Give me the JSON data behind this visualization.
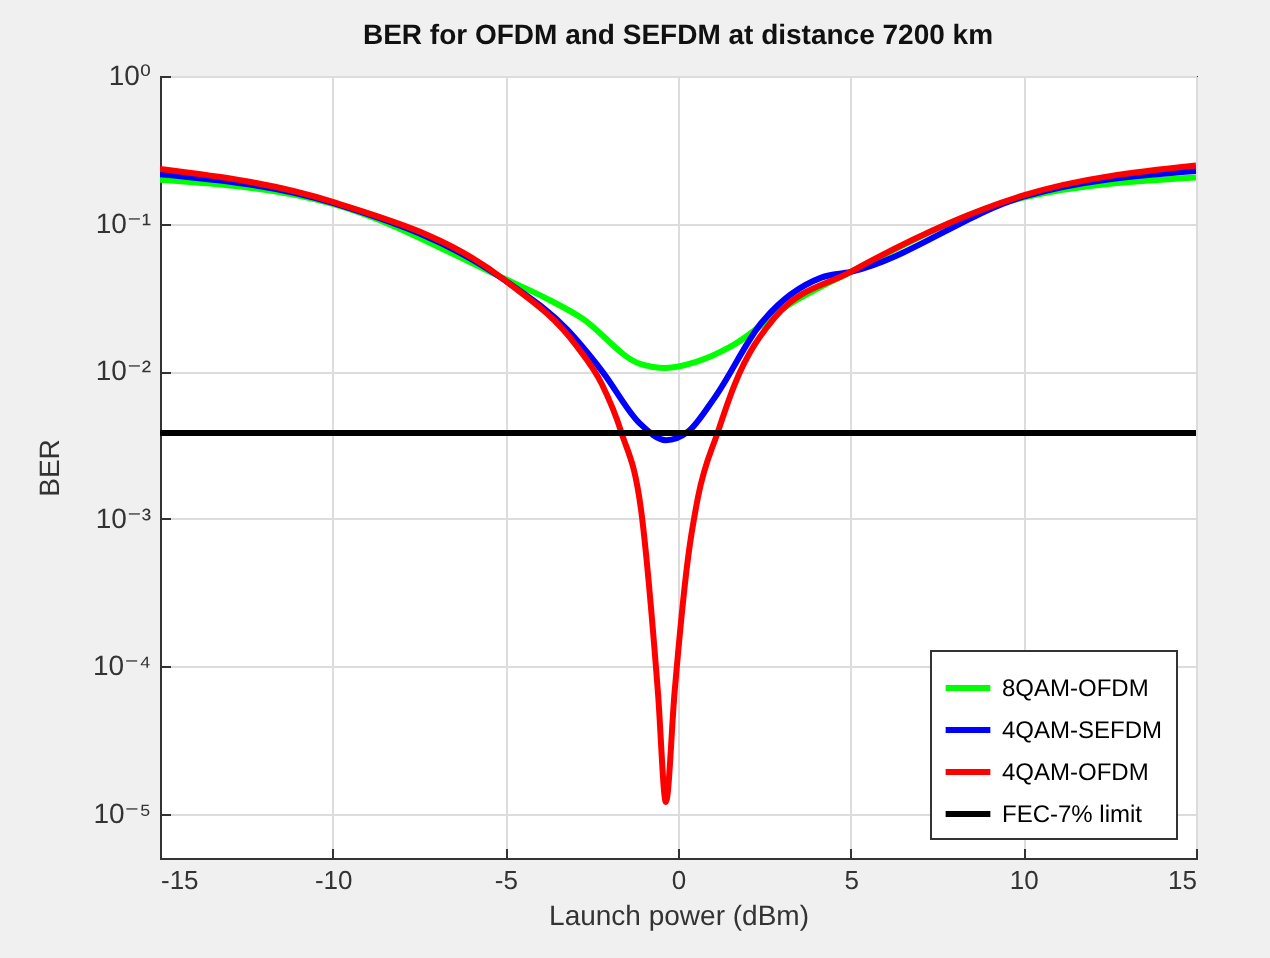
{
  "chart_data": {
    "type": "line",
    "title": "BER for OFDM and SEFDM at distance 7200 km",
    "xlabel": "Launch power (dBm)",
    "ylabel": "BER",
    "xlim": [
      -15,
      15
    ],
    "xticks": [
      -15,
      -10,
      -5,
      0,
      5,
      10,
      15
    ],
    "ylim": [
      5e-06,
      1
    ],
    "yticks": [
      {
        "value": 1,
        "label": "10⁰"
      },
      {
        "value": 0.1,
        "label": "10⁻¹"
      },
      {
        "value": 0.01,
        "label": "10⁻²"
      },
      {
        "value": 0.001,
        "label": "10⁻³"
      },
      {
        "value": 0.0001,
        "label": "10⁻⁴"
      },
      {
        "value": 1e-05,
        "label": "10⁻⁵"
      }
    ],
    "log": "y",
    "grid": true,
    "legend": "bottom right",
    "marker": "none",
    "line_style": "solid",
    "series": [
      {
        "name": "8QAM-OFDM",
        "color": "#00ff00",
        "x": [
          -15,
          -10,
          -5,
          -3.8,
          -2.8,
          -1.1,
          -0.35,
          0.5,
          1.6,
          3.2,
          5,
          10,
          15
        ],
        "values": [
          0.198,
          0.136,
          0.042,
          0.031,
          0.023,
          0.0112,
          0.0105,
          0.0115,
          0.015,
          0.028,
          0.047,
          0.15,
          0.205
        ]
      },
      {
        "name": "4QAM-SEFDM",
        "color": "#0000ff",
        "x": [
          -15,
          -10,
          -5,
          -3.2,
          -2.2,
          -1.1,
          -0.35,
          0.3,
          1.06,
          2.4,
          4.15,
          5,
          10,
          15
        ],
        "values": [
          0.216,
          0.138,
          0.041,
          0.019,
          0.01,
          0.0044,
          0.0034,
          0.0039,
          0.0066,
          0.021,
          0.043,
          0.047,
          0.152,
          0.227
        ]
      },
      {
        "name": "4QAM-OFDM",
        "color": "#ff0000",
        "x": [
          -15,
          -10,
          -5,
          -2.96,
          -2.2,
          -1.65,
          -1.06,
          -0.58,
          -0.35,
          -0.1,
          0.29,
          0.58,
          1.16,
          1.64,
          2.8,
          5,
          10,
          15
        ],
        "values": [
          0.234,
          0.14,
          0.041,
          0.015,
          0.0081,
          0.0039,
          0.0011,
          6.6e-05,
          1.2e-05,
          6.6e-05,
          0.00054,
          0.0014,
          0.0039,
          0.0081,
          0.023,
          0.047,
          0.155,
          0.247
        ]
      }
    ],
    "ref_lines": [
      {
        "axis": "y",
        "value": 0.0038,
        "label": "FEC-7% limit",
        "color": "#000000",
        "line_style": "solid"
      }
    ]
  }
}
